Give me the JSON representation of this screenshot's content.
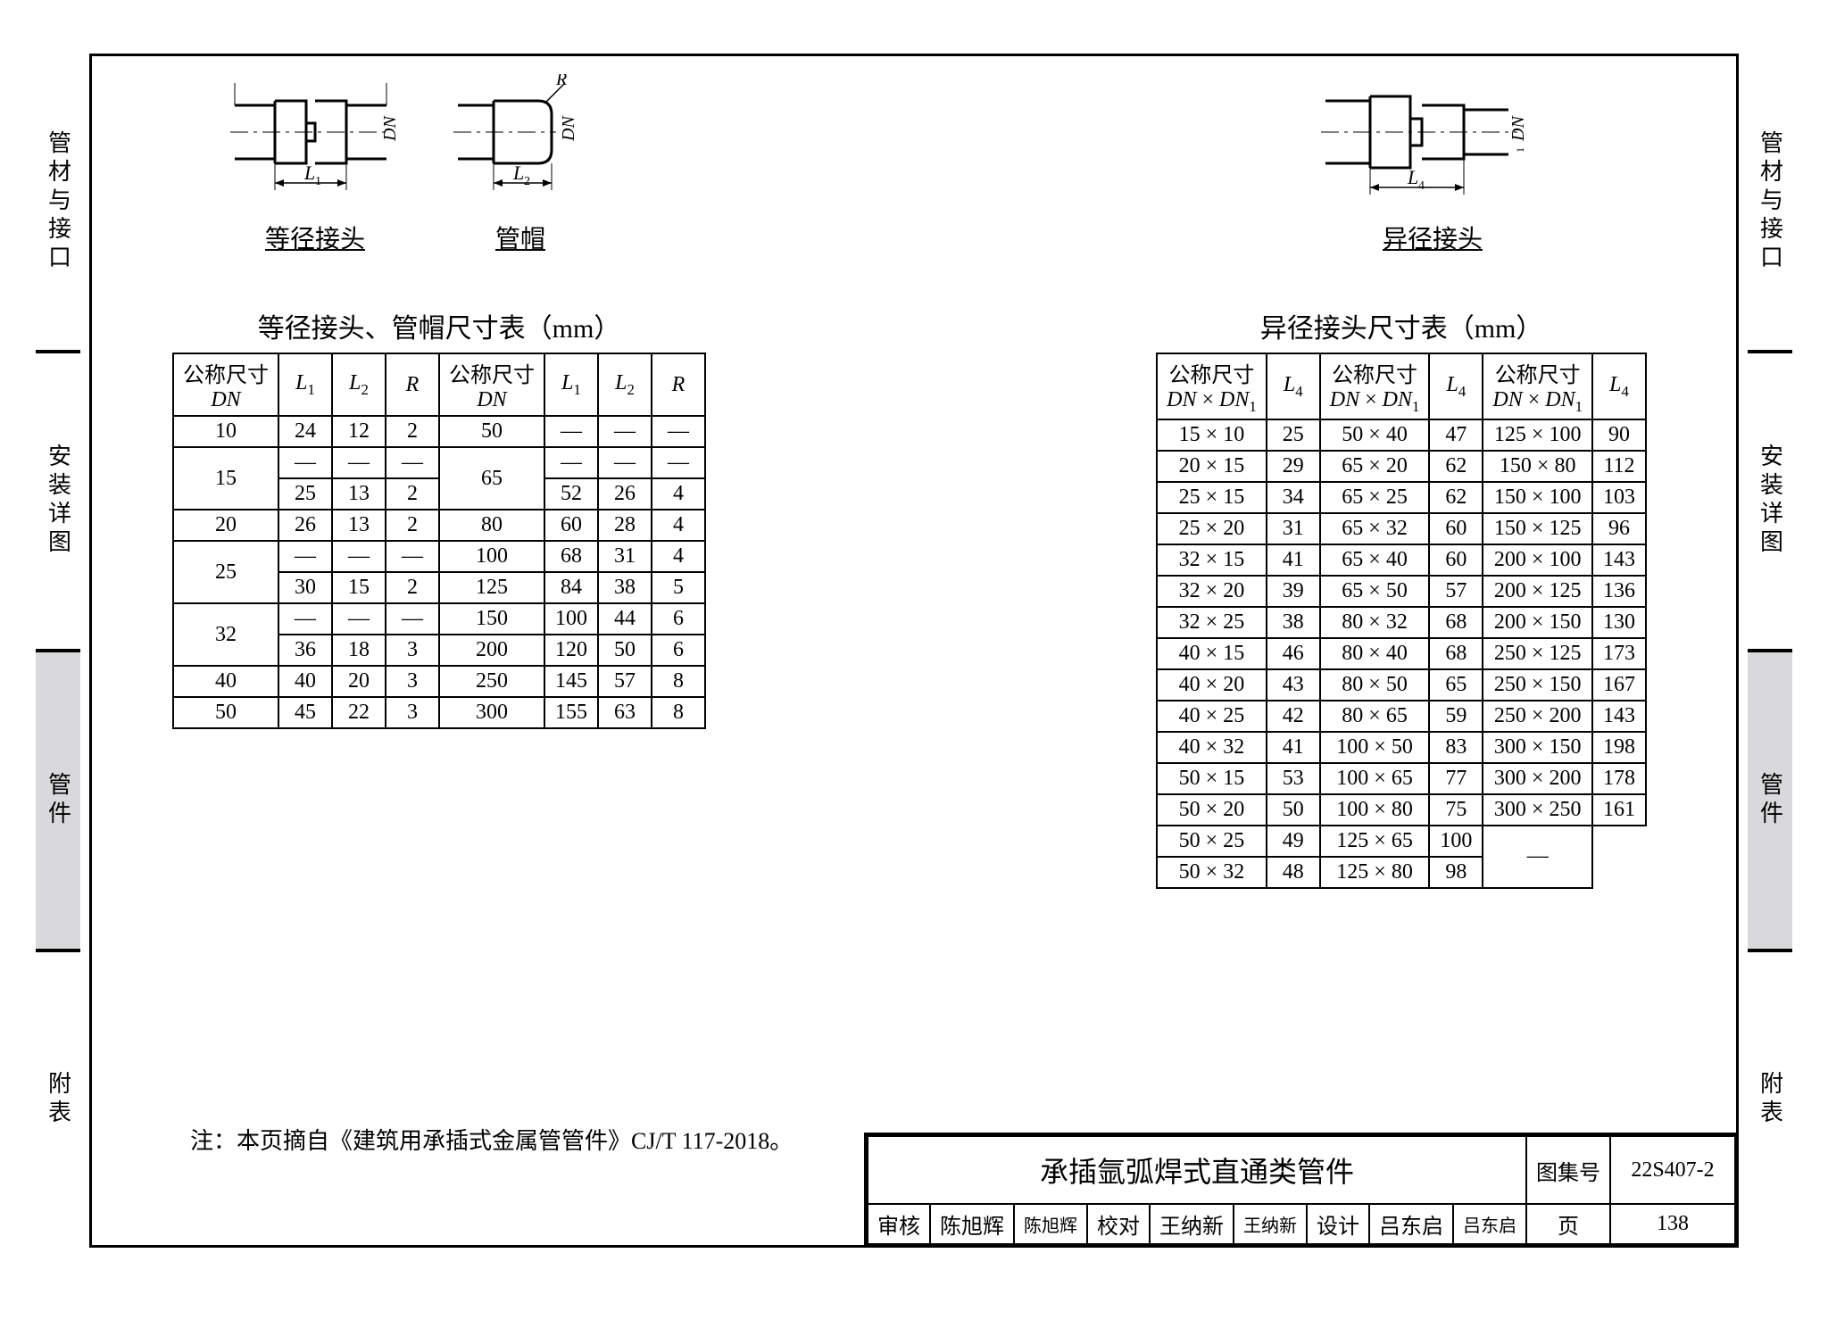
{
  "side_tabs": [
    "管材与接口",
    "安装详图",
    "管件",
    "附表"
  ],
  "active_tab_index": 2,
  "diagrams": {
    "equal_joint": {
      "caption": "等径接头",
      "dim1": "L₁",
      "axis": "DN"
    },
    "cap": {
      "caption": "管帽",
      "dim1": "L₂",
      "axis": "DN",
      "radius": "R"
    },
    "reducer": {
      "caption": "异径接头",
      "dim1": "L₄",
      "axis1": "DN",
      "axis2": "DN₁"
    }
  },
  "table_left": {
    "title": "等径接头、管帽尺寸表（mm）",
    "header": [
      "公称尺寸\nDN",
      "L₁",
      "L₂",
      "R",
      "公称尺寸\nDN",
      "L₁",
      "L₂",
      "R"
    ],
    "rows": [
      [
        "10",
        "24",
        "12",
        "2",
        "50",
        "—",
        "—",
        "—"
      ],
      [
        "15:2",
        "—",
        "—",
        "—",
        "65:2",
        "—",
        "—",
        "—"
      ],
      [
        "",
        "25",
        "13",
        "2",
        "",
        "52",
        "26",
        "4"
      ],
      [
        "20",
        "26",
        "13",
        "2",
        "80",
        "60",
        "28",
        "4"
      ],
      [
        "25:2",
        "—",
        "—",
        "—",
        "100",
        "68",
        "31",
        "4"
      ],
      [
        "",
        "30",
        "15",
        "2",
        "125",
        "84",
        "38",
        "5"
      ],
      [
        "32:2",
        "—",
        "—",
        "—",
        "150",
        "100",
        "44",
        "6"
      ],
      [
        "",
        "36",
        "18",
        "3",
        "200",
        "120",
        "50",
        "6"
      ],
      [
        "40",
        "40",
        "20",
        "3",
        "250",
        "145",
        "57",
        "8"
      ],
      [
        "50",
        "45",
        "22",
        "3",
        "300",
        "155",
        "63",
        "8"
      ]
    ]
  },
  "table_right": {
    "title": "异径接头尺寸表（mm）",
    "header": [
      "公称尺寸\nDN × DN₁",
      "L₄",
      "公称尺寸\nDN × DN₁",
      "L₄",
      "公称尺寸\nDN × DN₁",
      "L₄"
    ],
    "rows": [
      [
        "15 × 10",
        "25",
        "50 × 40",
        "47",
        "125 × 100",
        "90"
      ],
      [
        "20 × 15",
        "29",
        "65 × 20",
        "62",
        "150 × 80",
        "112"
      ],
      [
        "25 × 15",
        "34",
        "65 × 25",
        "62",
        "150 × 100",
        "103"
      ],
      [
        "25 × 20",
        "31",
        "65 × 32",
        "60",
        "150 × 125",
        "96"
      ],
      [
        "32 × 15",
        "41",
        "65 × 40",
        "60",
        "200 × 100",
        "143"
      ],
      [
        "32 × 20",
        "39",
        "65 × 50",
        "57",
        "200 × 125",
        "136"
      ],
      [
        "32 × 25",
        "38",
        "80 × 32",
        "68",
        "200 × 150",
        "130"
      ],
      [
        "40 × 15",
        "46",
        "80 × 40",
        "68",
        "250 × 125",
        "173"
      ],
      [
        "40 × 20",
        "43",
        "80 × 50",
        "65",
        "250 × 150",
        "167"
      ],
      [
        "40 × 25",
        "42",
        "80 × 65",
        "59",
        "250 × 200",
        "143"
      ],
      [
        "40 × 32",
        "41",
        "100 × 50",
        "83",
        "300 × 150",
        "198"
      ],
      [
        "50 × 15",
        "53",
        "100 × 65",
        "77",
        "300 × 200",
        "178"
      ],
      [
        "50 × 20",
        "50",
        "100 × 80",
        "75",
        "300 × 250",
        "161"
      ],
      [
        "50 × 25",
        "49",
        "125 × 65",
        "100",
        "—:2",
        ""
      ],
      [
        "50 × 32",
        "48",
        "125 × 80",
        "98",
        "",
        ""
      ]
    ]
  },
  "note": "注：本页摘自《建筑用承插式金属管管件》CJ/T 117-2018。",
  "titleblock": {
    "main_title": "承插氩弧焊式直通类管件",
    "set_label": "图集号",
    "set_value": "22S407-2",
    "page_label": "页",
    "page_value": "138",
    "fields": [
      {
        "label": "审核",
        "name": "陈旭辉",
        "sig": "陈旭辉"
      },
      {
        "label": "校对",
        "name": "王纳新",
        "sig": "王纳新"
      },
      {
        "label": "设计",
        "name": "吕东启",
        "sig": "吕东启"
      }
    ]
  },
  "colors": {
    "border": "#000000",
    "bg": "#ffffff",
    "tab_active": "#d9d9db"
  }
}
